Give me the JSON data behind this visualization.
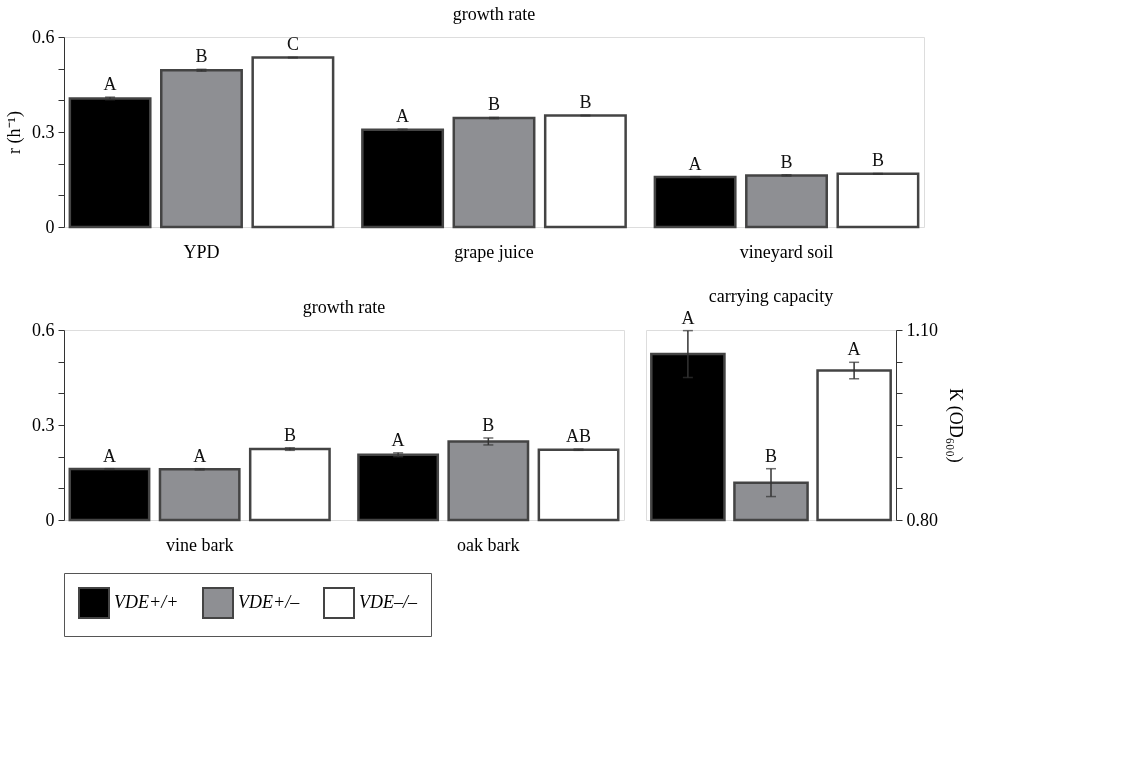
{
  "chart_data": [
    {
      "type": "bar",
      "title": "growth rate",
      "ylabel": "r (h⁻¹)",
      "categories": [
        "YPD",
        "grape juice",
        "vineyard soil"
      ],
      "ylim": [
        0,
        0.6
      ],
      "yticks": [
        0,
        {
          "value": 0.1,
          "label": null
        },
        {
          "value": 0.2,
          "label": null
        },
        0.3,
        {
          "value": 0.4,
          "label": null
        },
        {
          "value": 0.5,
          "label": null
        },
        0.6
      ],
      "grid": false,
      "legend": "bottom",
      "series": [
        {
          "name": "VDE+/+",
          "color": "#000000",
          "values": [
            0.406,
            0.307,
            0.158
          ],
          "errors": [
            0.004,
            0.002,
            0.001
          ],
          "value_labels": [
            "A",
            "A",
            "A"
          ]
        },
        {
          "name": "VDE+/–",
          "color": "#8e8f93",
          "values": [
            0.495,
            0.344,
            0.163
          ],
          "errors": [
            0.003,
            0.002,
            0.002
          ],
          "value_labels": [
            "B",
            "B",
            "B"
          ]
        },
        {
          "name": "VDE–/–",
          "color": "#ffffff",
          "values": [
            0.535,
            0.352,
            0.168
          ],
          "errors": [
            0.001,
            0.001,
            0.001
          ],
          "value_labels": [
            "C",
            "B",
            "B"
          ]
        }
      ]
    },
    {
      "type": "bar",
      "title": "growth rate",
      "categories": [
        "vine bark",
        "oak bark"
      ],
      "ylim": [
        0,
        0.6
      ],
      "yticks": [
        0,
        {
          "value": 0.1,
          "label": null
        },
        {
          "value": 0.2,
          "label": null
        },
        0.3,
        {
          "value": 0.4,
          "label": null
        },
        {
          "value": 0.5,
          "label": null
        },
        0.6
      ],
      "grid": false,
      "series": [
        {
          "color": "#000000",
          "values": [
            0.161,
            0.206
          ],
          "errors": [
            0.001,
            0.006
          ],
          "value_labels": [
            "A",
            "A"
          ]
        },
        {
          "color": "#8e8f93",
          "values": [
            0.16,
            0.248
          ],
          "errors": [
            0.002,
            0.011
          ],
          "value_labels": [
            "A",
            "B"
          ]
        },
        {
          "color": "#ffffff",
          "values": [
            0.224,
            0.222
          ],
          "errors": [
            0.004,
            0.002
          ],
          "value_labels": [
            "B",
            "AB"
          ]
        }
      ]
    },
    {
      "type": "bar",
      "title": "carrying capacity",
      "ylabel": "K (OD₆₀₀)",
      "categories": [
        null
      ],
      "ylim": [
        0.8,
        1.1
      ],
      "yticks": [
        {
          "value": 0.8,
          "label": "0.80"
        },
        {
          "value": 0.85,
          "label": null
        },
        {
          "value": 0.9,
          "label": null
        },
        {
          "value": 0.95,
          "label": null
        },
        {
          "value": 1.0,
          "label": null
        },
        {
          "value": 1.05,
          "label": null
        },
        {
          "value": 1.1,
          "label": "1.10"
        }
      ],
      "grid": false,
      "series": [
        {
          "color": "#000000",
          "values": [
            1.062
          ],
          "errors": [
            0.037
          ],
          "value_labels": [
            "A"
          ]
        },
        {
          "color": "#8e8f93",
          "values": [
            0.859
          ],
          "errors": [
            0.022
          ],
          "value_labels": [
            "B"
          ]
        },
        {
          "color": "#ffffff",
          "values": [
            1.036
          ],
          "errors": [
            0.013
          ],
          "value_labels": [
            "A"
          ]
        }
      ]
    }
  ]
}
